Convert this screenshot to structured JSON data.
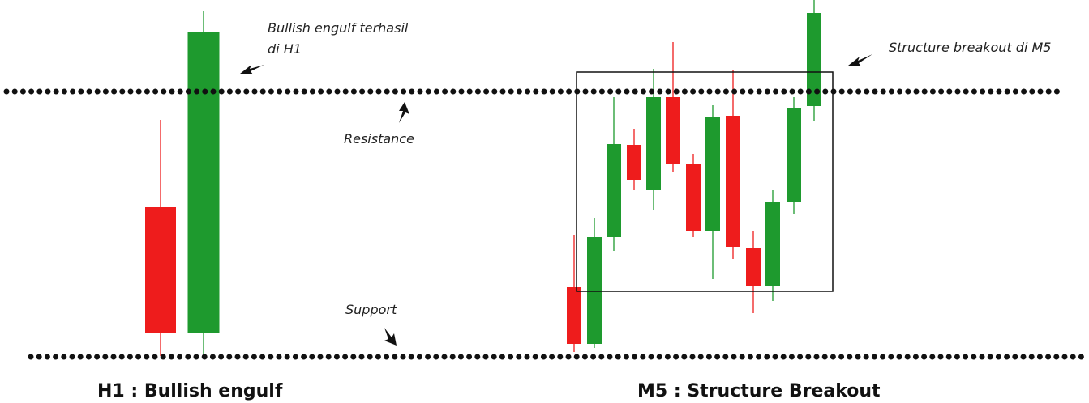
{
  "annotations": {
    "engulf_note": [
      "Bullish engulf terhasil",
      "di H1"
    ],
    "resistance": "Resistance",
    "support": "Support",
    "breakout_note": "Structure breakout di M5"
  },
  "headings": {
    "left": "H1 : Bullish engulf",
    "right": "M5 : Structure Breakout"
  }
}
